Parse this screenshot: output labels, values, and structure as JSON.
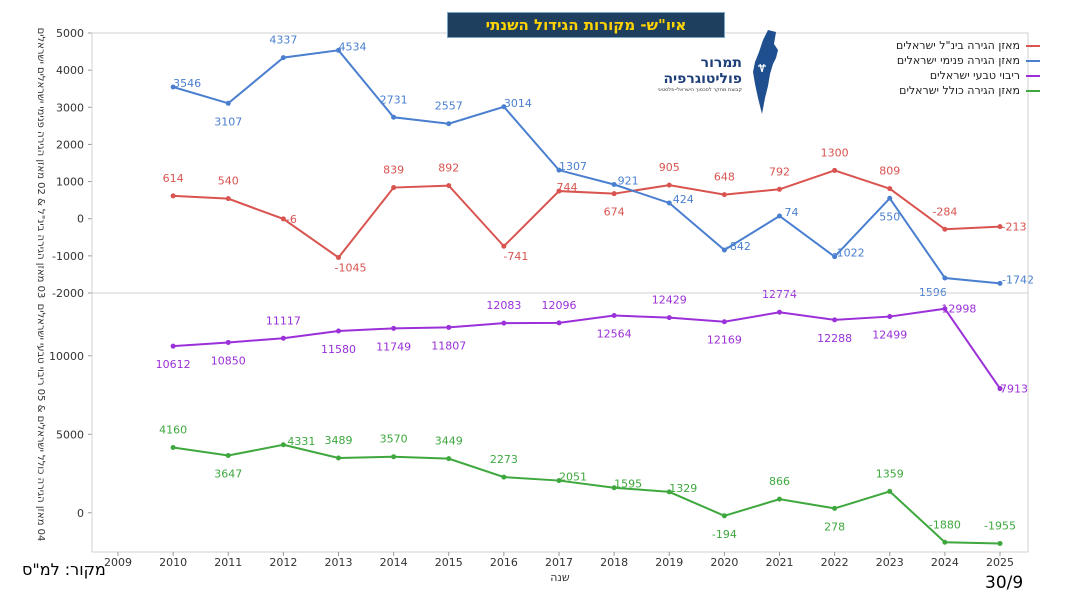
{
  "title": "איו\"ש- מקורות הגידול השנתי",
  "source_note": "מקור: למ\"ס",
  "page_number": "30/9",
  "logo": {
    "name_line1": "תמרור",
    "name_line2": "פוליטוגרפיה",
    "tagline": "קבוצת מחקר לסכסוך הישראלי-פלסטיני"
  },
  "colors": {
    "red": "#d9534f",
    "blue": "#4a7fd0",
    "purple": "#9b30d9",
    "green": "#3ea83e"
  },
  "chart_data": [
    {
      "type": "line",
      "ylabel": "03 מאזן הגירה בינ\"ל & 02 מאזן הגירה פנימי ישראלים ישראלים",
      "ylim": [
        -2000,
        5000
      ],
      "yticks": [
        -2000,
        -1000,
        0,
        1000,
        2000,
        3000,
        4000,
        5000
      ],
      "x": [
        2010,
        2011,
        2012,
        2013,
        2014,
        2015,
        2016,
        2017,
        2018,
        2019,
        2020,
        2021,
        2022,
        2023,
        2024,
        2025
      ],
      "series": [
        {
          "name": "מאזן הגירה בינ\"ל ישראלים",
          "color": "#d9534f",
          "values": [
            614,
            540,
            -6,
            -1045,
            839,
            892,
            -741,
            744,
            674,
            905,
            648,
            792,
            1300,
            809,
            -284,
            -213
          ]
        },
        {
          "name": "מאזן הגירה פנימי ישראלים",
          "color": "#4a7fd0",
          "values": [
            3546,
            3107,
            4337,
            4534,
            2731,
            2557,
            3014,
            1307,
            921,
            424,
            -842,
            74,
            -1022,
            550,
            -1596,
            -1742
          ]
        }
      ]
    },
    {
      "type": "line",
      "ylabel": "04 מאזן הגירה כולל ישראלים & 05 ריבוי טבעי ישראלים",
      "xlabel": "שנה",
      "ylim": [
        -2500,
        14000
      ],
      "yticks": [
        0,
        5000,
        10000
      ],
      "x": [
        2010,
        2011,
        2012,
        2013,
        2014,
        2015,
        2016,
        2017,
        2018,
        2019,
        2020,
        2021,
        2022,
        2023,
        2024,
        2025
      ],
      "xticks": [
        2009,
        2010,
        2011,
        2012,
        2013,
        2014,
        2015,
        2016,
        2017,
        2018,
        2019,
        2020,
        2021,
        2022,
        2023,
        2024,
        2025
      ],
      "series": [
        {
          "name": "ריבוי טבעי ישראלים",
          "color": "#9b30d9",
          "values": [
            10612,
            10850,
            11117,
            11580,
            11749,
            11807,
            12083,
            12096,
            12564,
            12429,
            12169,
            12774,
            12288,
            12499,
            12998,
            7913
          ]
        },
        {
          "name": "מאזן הגירה כולל ישראלים",
          "color": "#3ea83e",
          "values": [
            4160,
            3647,
            4331,
            3489,
            3570,
            3449,
            2273,
            2051,
            1595,
            1329,
            -194,
            866,
            278,
            1359,
            -1880,
            -1955
          ]
        }
      ]
    }
  ]
}
